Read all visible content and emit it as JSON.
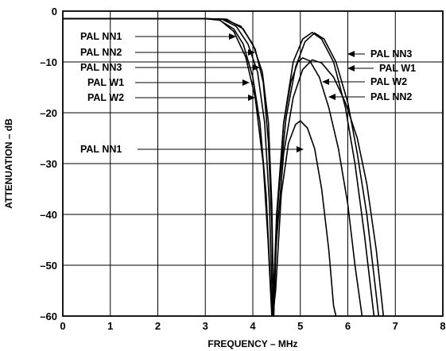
{
  "chart_data": {
    "type": "line",
    "title": "",
    "xlabel": "FREQUENCY – MHz",
    "ylabel": "ATTENUATION – dB",
    "xlim": [
      0,
      8
    ],
    "ylim": [
      -60,
      0
    ],
    "x_ticks": [
      "0",
      "1",
      "2",
      "3",
      "4",
      "5",
      "6",
      "7",
      "8"
    ],
    "y_ticks": [
      "0",
      "–10",
      "–20",
      "–30",
      "–40",
      "–50",
      "–60"
    ],
    "grid": true,
    "series": [
      {
        "name": "PAL NN1",
        "points": [
          [
            0,
            -1.5
          ],
          [
            2.5,
            -1.5
          ],
          [
            3.0,
            -1.5
          ],
          [
            3.3,
            -1.8
          ],
          [
            3.6,
            -3.5
          ],
          [
            3.8,
            -6.5
          ],
          [
            4.0,
            -13
          ],
          [
            4.15,
            -22
          ],
          [
            4.28,
            -36
          ],
          [
            4.38,
            -55
          ],
          [
            4.42,
            -60
          ],
          [
            4.48,
            -55
          ],
          [
            4.6,
            -36
          ],
          [
            4.75,
            -26
          ],
          [
            4.9,
            -22.3
          ],
          [
            5.0,
            -21.6
          ],
          [
            5.15,
            -23
          ],
          [
            5.3,
            -27
          ],
          [
            5.45,
            -35
          ],
          [
            5.6,
            -47
          ],
          [
            5.7,
            -58
          ],
          [
            5.75,
            -60
          ]
        ]
      },
      {
        "name": "PAL NN2",
        "points": [
          [
            0,
            -1.5
          ],
          [
            2.5,
            -1.5
          ],
          [
            3.0,
            -1.5
          ],
          [
            3.35,
            -1.6
          ],
          [
            3.65,
            -3
          ],
          [
            3.9,
            -6.5
          ],
          [
            4.1,
            -12
          ],
          [
            4.25,
            -22
          ],
          [
            4.35,
            -38
          ],
          [
            4.42,
            -60
          ],
          [
            4.5,
            -40
          ],
          [
            4.65,
            -22
          ],
          [
            4.8,
            -14
          ],
          [
            4.95,
            -10
          ],
          [
            5.05,
            -9.2
          ],
          [
            5.2,
            -9.8
          ],
          [
            5.4,
            -13
          ],
          [
            5.6,
            -19
          ],
          [
            5.8,
            -27
          ],
          [
            6.0,
            -38
          ],
          [
            6.15,
            -50
          ],
          [
            6.3,
            -60
          ]
        ]
      },
      {
        "name": "PAL NN3",
        "points": [
          [
            0,
            -1.5
          ],
          [
            2.5,
            -1.5
          ],
          [
            3.0,
            -1.5
          ],
          [
            3.4,
            -1.6
          ],
          [
            3.75,
            -3
          ],
          [
            4.0,
            -6.5
          ],
          [
            4.2,
            -12
          ],
          [
            4.33,
            -22
          ],
          [
            4.4,
            -38
          ],
          [
            4.44,
            -60
          ],
          [
            4.5,
            -42
          ],
          [
            4.65,
            -22
          ],
          [
            4.85,
            -10
          ],
          [
            5.05,
            -5.5
          ],
          [
            5.25,
            -4.2
          ],
          [
            5.45,
            -5.5
          ],
          [
            5.7,
            -10
          ],
          [
            5.95,
            -19
          ],
          [
            6.15,
            -30
          ],
          [
            6.35,
            -44
          ],
          [
            6.55,
            -60
          ]
        ]
      },
      {
        "name": "PAL W1",
        "points": [
          [
            0,
            -1.5
          ],
          [
            2.5,
            -1.5
          ],
          [
            3.0,
            -1.5
          ],
          [
            3.45,
            -1.6
          ],
          [
            3.8,
            -3.5
          ],
          [
            4.05,
            -7.5
          ],
          [
            4.22,
            -14
          ],
          [
            4.33,
            -26
          ],
          [
            4.4,
            -42
          ],
          [
            4.44,
            -60
          ],
          [
            4.52,
            -38
          ],
          [
            4.7,
            -21
          ],
          [
            4.9,
            -11
          ],
          [
            5.1,
            -6
          ],
          [
            5.3,
            -4.3
          ],
          [
            5.5,
            -5.5
          ],
          [
            5.75,
            -10
          ],
          [
            6.0,
            -18
          ],
          [
            6.2,
            -28
          ],
          [
            6.4,
            -40
          ],
          [
            6.55,
            -52
          ],
          [
            6.65,
            -60
          ]
        ]
      },
      {
        "name": "PAL W2",
        "points": [
          [
            0,
            -1.5
          ],
          [
            2.5,
            -1.5
          ],
          [
            3.0,
            -1.5
          ],
          [
            3.3,
            -1.7
          ],
          [
            3.6,
            -4
          ],
          [
            3.85,
            -9
          ],
          [
            4.05,
            -17
          ],
          [
            4.22,
            -30
          ],
          [
            4.32,
            -45
          ],
          [
            4.4,
            -60
          ],
          [
            4.5,
            -45
          ],
          [
            4.65,
            -28
          ],
          [
            4.85,
            -17
          ],
          [
            5.05,
            -11.5
          ],
          [
            5.25,
            -9.6
          ],
          [
            5.45,
            -10.2
          ],
          [
            5.7,
            -13
          ],
          [
            5.95,
            -18
          ],
          [
            6.2,
            -25
          ],
          [
            6.4,
            -34
          ],
          [
            6.6,
            -47
          ],
          [
            6.75,
            -60
          ]
        ]
      }
    ],
    "annotations_left": [
      "PAL NN1",
      "PAL NN2",
      "PAL NN3",
      "PAL W1",
      "PAL W2",
      "PAL NN1"
    ],
    "annotations_right": [
      "PAL NN3",
      "PAL W1",
      "PAL W2",
      "PAL NN2"
    ]
  }
}
